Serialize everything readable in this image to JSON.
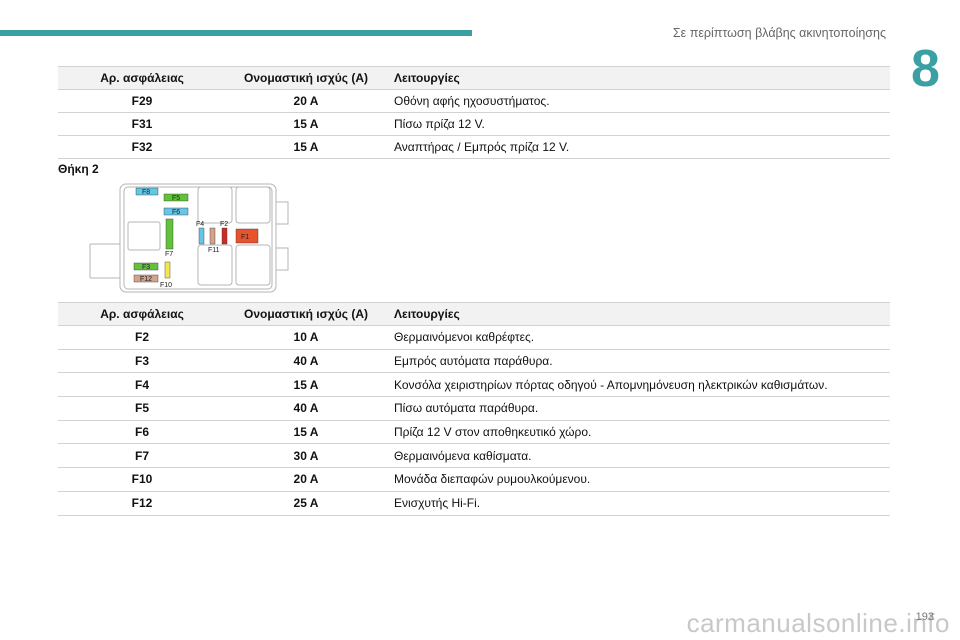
{
  "header": {
    "title": "Σε περίπτωση βλάβης ακινητοποίησης",
    "chapter": "8"
  },
  "table1": {
    "headers": [
      "Αρ. ασφάλειας",
      "Ονομαστική ισχύς (A)",
      "Λειτουργίες"
    ],
    "rows": [
      [
        "F29",
        "20 A",
        "Οθόνη αφής ηχοσυστήματος."
      ],
      [
        "F31",
        "15 A",
        "Πίσω πρίζα 12 V."
      ],
      [
        "F32",
        "15 A",
        "Αναπτήρας / Εμπρός πρίζα 12 V."
      ]
    ]
  },
  "section_title": "Θήκη 2",
  "diagram": {
    "labels": [
      "F8",
      "F5",
      "F6",
      "F4",
      "F2",
      "F1",
      "F11",
      "F7",
      "F3",
      "F12",
      "F10"
    ],
    "colors": {
      "red": "#e8532b",
      "green": "#62c23b",
      "blue": "#66c6e8",
      "tan": "#d4a48a",
      "yellow": "#f2e84a",
      "darkred": "#cc2a2a"
    }
  },
  "table2": {
    "headers": [
      "Αρ. ασφάλειας",
      "Ονομαστική ισχύς (A)",
      "Λειτουργίες"
    ],
    "rows": [
      [
        "F2",
        "10 A",
        "Θερμαινόμενοι καθρέφτες."
      ],
      [
        "F3",
        "40 A",
        "Εμπρός αυτόματα παράθυρα."
      ],
      [
        "F4",
        "15 A",
        "Κονσόλα χειριστηρίων πόρτας οδηγού - Απομνημόνευση ηλεκτρικών καθισμάτων."
      ],
      [
        "F5",
        "40 A",
        "Πίσω αυτόματα παράθυρα."
      ],
      [
        "F6",
        "15 A",
        "Πρίζα 12 V στον αποθηκευτικό χώρο."
      ],
      [
        "F7",
        "30 A",
        "Θερμαινόμενα καθίσματα."
      ],
      [
        "F10",
        "20 A",
        "Μονάδα διεπαφών ρυμουλκούμενου."
      ],
      [
        "F12",
        "25 A",
        "Ενισχυτής Hi-Fi."
      ]
    ]
  },
  "footer": {
    "page": "193",
    "watermark": "carmanualsonline.info"
  }
}
